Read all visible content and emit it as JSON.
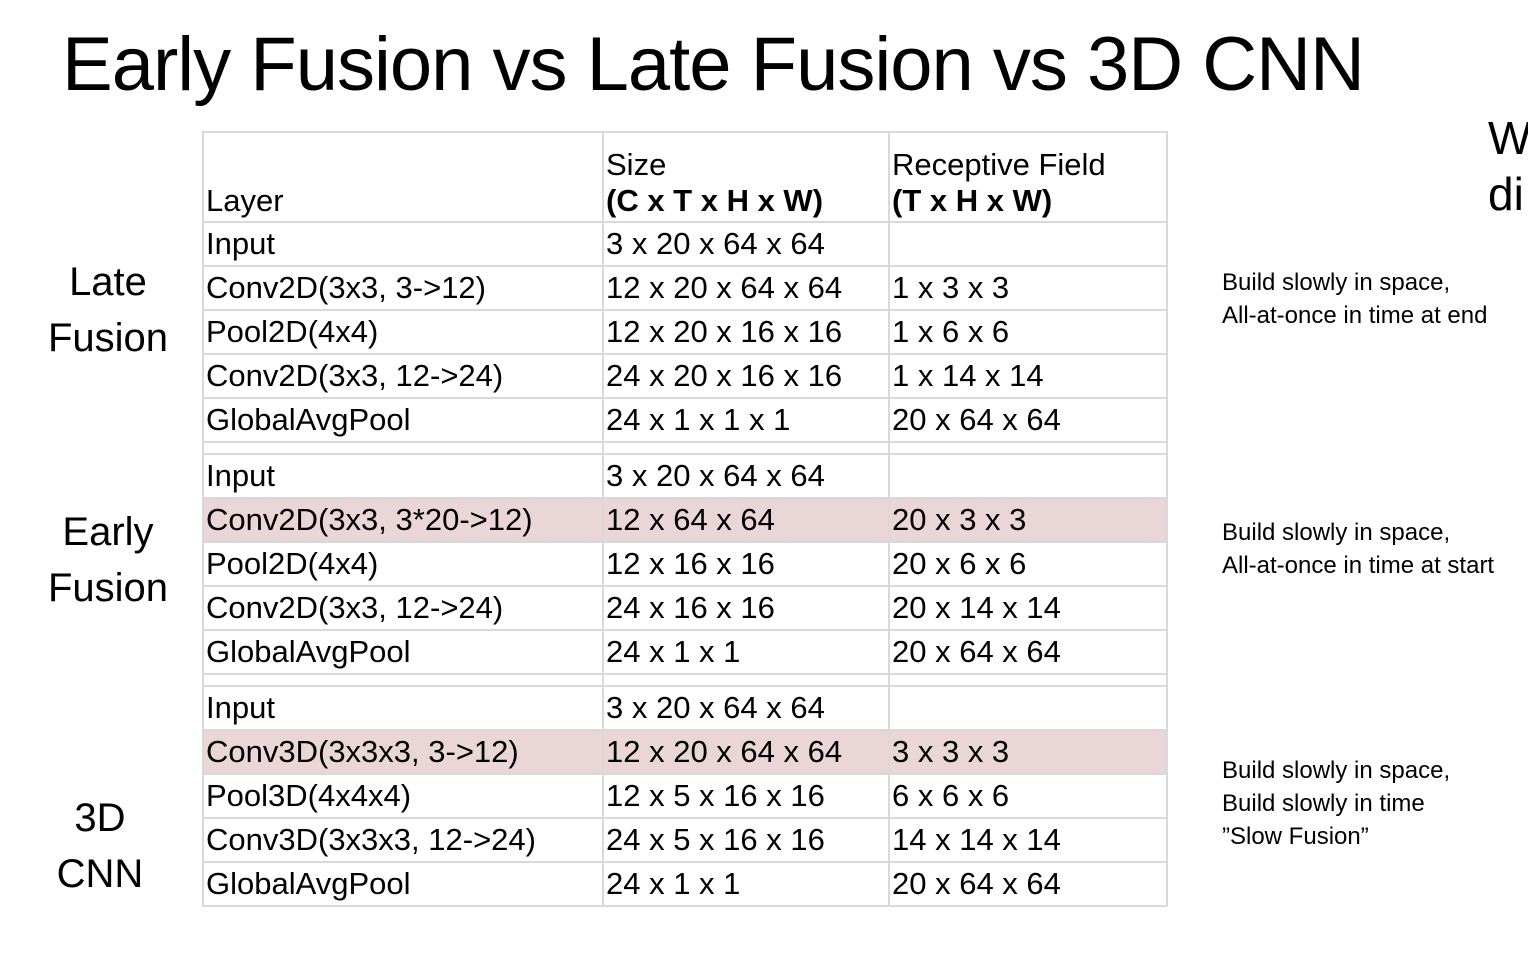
{
  "title": "Early Fusion vs Late Fusion vs 3D CNN",
  "cut_text": "W\ndi",
  "header": {
    "layer": "Layer",
    "size_line1": "Size",
    "size_line2": "(C x T x H x W)",
    "rf_line1": "Receptive Field",
    "rf_line2": "(T x H x W)"
  },
  "groups": [
    {
      "label": "Late\nFusion",
      "note": "Build slowly in space,\nAll-at-once in time at end",
      "rows": [
        {
          "layer": "Input",
          "size": "3 x 20 x 64 x 64",
          "rf": ""
        },
        {
          "layer": "Conv2D(3x3, 3->12)",
          "size": "12 x 20 x 64 x 64",
          "rf": "1 x 3 x 3"
        },
        {
          "layer": "Pool2D(4x4)",
          "size": "12 x 20 x 16 x 16",
          "rf": "1 x 6 x 6"
        },
        {
          "layer": "Conv2D(3x3, 12->24)",
          "size": "24 x 20 x 16 x 16",
          "rf": "1 x 14 x 14"
        },
        {
          "layer": "GlobalAvgPool",
          "size": "24 x 1 x 1 x 1",
          "rf": "20 x 64 x 64"
        }
      ]
    },
    {
      "label": "Early\nFusion",
      "note": "Build slowly in space,\nAll-at-once in time at start",
      "rows": [
        {
          "layer": "Input",
          "size": "3 x 20 x 64 x 64",
          "rf": ""
        },
        {
          "layer": "Conv2D(3x3, 3*20->12)",
          "size": "12 x 64 x 64",
          "rf": "20 x 3 x 3"
        },
        {
          "layer": "Pool2D(4x4)",
          "size": "12 x 16 x 16",
          "rf": "20 x 6 x 6"
        },
        {
          "layer": "Conv2D(3x3, 12->24)",
          "size": "24 x 16 x 16",
          "rf": "20 x 14 x 14"
        },
        {
          "layer": "GlobalAvgPool",
          "size": "24 x 1 x 1",
          "rf": "20 x 64 x 64"
        }
      ]
    },
    {
      "label": "3D\nCNN",
      "note": "Build slowly in space,\nBuild slowly in time\n”Slow Fusion”",
      "rows": [
        {
          "layer": "Input",
          "size": "3 x 20 x 64 x 64",
          "rf": ""
        },
        {
          "layer": "Conv3D(3x3x3, 3->12)",
          "size": "12 x 20 x 64 x 64",
          "rf": "3 x 3 x 3"
        },
        {
          "layer": "Pool3D(4x4x4)",
          "size": "12 x 5 x 16 x 16",
          "rf": "6 x 6 x 6"
        },
        {
          "layer": "Conv3D(3x3x3, 12->24)",
          "size": "24 x 5 x 16 x 16",
          "rf": "14 x 14 x 14"
        },
        {
          "layer": "GlobalAvgPool",
          "size": "24 x 1 x 1",
          "rf": "20 x 64 x 64"
        }
      ]
    }
  ],
  "highlight_color": "#ead5d7"
}
